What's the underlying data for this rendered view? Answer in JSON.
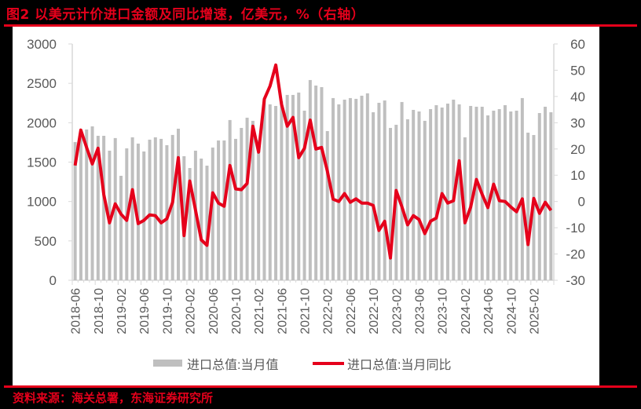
{
  "title": "图2  以美元计价进口金额及同比增速，亿美元，%（右轴）",
  "source": "资料来源：海关总署，东海证券研究所",
  "colors": {
    "accent": "#e5001b",
    "bar": "#bfbfbf",
    "axis": "#d9d9d9",
    "tick_text": "#595959",
    "background": "#000000",
    "panel": "#ffffff"
  },
  "legend": [
    {
      "label": "进口总值:当月值",
      "type": "bar",
      "color": "#bfbfbf"
    },
    {
      "label": "进口总值:当月同比",
      "type": "line",
      "color": "#e5001b"
    }
  ],
  "chart_data": {
    "type": "bar+line",
    "title": "以美元计价进口金额及同比增速，亿美元，%（右轴）",
    "xlabel": "",
    "ylabel_left": "亿美元",
    "ylabel_right": "%",
    "ylim_left": [
      0,
      3000
    ],
    "ylim_right": [
      -30,
      60
    ],
    "yticks_left": [
      0,
      500,
      1000,
      1500,
      2000,
      2500,
      3000
    ],
    "yticks_right": [
      -30,
      -20,
      -10,
      0,
      10,
      20,
      30,
      40,
      50,
      60
    ],
    "xtick_labels": [
      "2018-06",
      "2018-10",
      "2019-02",
      "2019-06",
      "2019-10",
      "2020-02",
      "2020-06",
      "2020-10",
      "2021-02",
      "2021-06",
      "2021-10",
      "2022-02",
      "2022-06",
      "2022-10",
      "2023-02",
      "2023-06",
      "2023-10",
      "2024-02",
      "2024-06",
      "2024-10",
      "2025-02"
    ],
    "grid": false,
    "legend_position": "bottom",
    "categories": [
      "2018-06",
      "2018-07",
      "2018-08",
      "2018-09",
      "2018-10",
      "2018-11",
      "2018-12",
      "2019-01",
      "2019-02",
      "2019-03",
      "2019-04",
      "2019-05",
      "2019-06",
      "2019-07",
      "2019-08",
      "2019-09",
      "2019-10",
      "2019-11",
      "2019-12",
      "2020-01",
      "2020-02",
      "2020-03",
      "2020-04",
      "2020-05",
      "2020-06",
      "2020-07",
      "2020-08",
      "2020-09",
      "2020-10",
      "2020-11",
      "2020-12",
      "2021-01",
      "2021-02",
      "2021-03",
      "2021-04",
      "2021-05",
      "2021-06",
      "2021-07",
      "2021-08",
      "2021-09",
      "2021-10",
      "2021-11",
      "2021-12",
      "2022-01",
      "2022-02",
      "2022-03",
      "2022-04",
      "2022-05",
      "2022-06",
      "2022-07",
      "2022-08",
      "2022-09",
      "2022-10",
      "2022-11",
      "2022-12",
      "2023-01",
      "2023-02",
      "2023-03",
      "2023-04",
      "2023-05",
      "2023-06",
      "2023-07",
      "2023-08",
      "2023-09",
      "2023-10",
      "2023-11",
      "2023-12",
      "2024-01",
      "2024-02",
      "2024-03",
      "2024-04",
      "2024-05",
      "2024-06",
      "2024-07",
      "2024-08",
      "2024-09",
      "2024-10",
      "2024-11",
      "2024-12",
      "2025-01",
      "2025-02",
      "2025-03",
      "2025-04",
      "2025-05"
    ],
    "series": [
      {
        "name": "进口总值:当月值",
        "type": "bar",
        "axis": "left",
        "values": [
          1755,
          1870,
          1914,
          1954,
          1834,
          1834,
          1645,
          1805,
          1326,
          1675,
          1815,
          1735,
          1635,
          1785,
          1815,
          1795,
          1715,
          1845,
          1924,
          1575,
          1425,
          1645,
          1545,
          1455,
          1685,
          1775,
          1775,
          2034,
          1795,
          1934,
          2064,
          2024,
          1780,
          2300,
          2233,
          2213,
          2273,
          2353,
          2353,
          2383,
          2153,
          2542,
          2472,
          2452,
          1894,
          2313,
          2233,
          2293,
          2313,
          2303,
          2343,
          2373,
          2133,
          2253,
          2283,
          1934,
          1974,
          2263,
          2044,
          2163,
          2143,
          2024,
          2173,
          2223,
          2193,
          2243,
          2293,
          2233,
          1815,
          2213,
          2203,
          2203,
          2093,
          2153,
          2173,
          2223,
          2143,
          2153,
          2313,
          1874,
          1844,
          2123,
          2203,
          2133
        ]
      },
      {
        "name": "进口总值:当月同比",
        "type": "line",
        "axis": "right",
        "values": [
          13.7,
          27.2,
          20.6,
          14.3,
          20.3,
          2.7,
          -8.1,
          -0.9,
          -4.8,
          -7.2,
          4.5,
          -8.4,
          -7.2,
          -5.1,
          -5.4,
          -8.1,
          -6.6,
          -0.3,
          16.7,
          -13.0,
          7.8,
          -3.3,
          -14.6,
          -16.7,
          3.3,
          -0.6,
          -1.8,
          13.7,
          4.8,
          4.5,
          6.9,
          28.7,
          18.8,
          39.0,
          44.0,
          52.0,
          37.0,
          28.7,
          32.0,
          16.7,
          20.3,
          31.0,
          20.0,
          20.6,
          11.6,
          0.9,
          0.0,
          3.0,
          -0.3,
          1.0,
          -0.6,
          -0.6,
          -1.5,
          -11.0,
          -7.5,
          -21.5,
          4.2,
          -2.0,
          -8.9,
          -5.4,
          -6.9,
          -12.2,
          -7.5,
          -6.3,
          3.0,
          -0.6,
          0.3,
          15.5,
          -8.1,
          -2.1,
          8.4,
          2.7,
          -2.3,
          6.6,
          0.3,
          0.0,
          -2.1,
          -3.9,
          1.0,
          -16.4,
          1.2,
          -4.5,
          -0.3,
          -3.4
        ]
      }
    ]
  }
}
